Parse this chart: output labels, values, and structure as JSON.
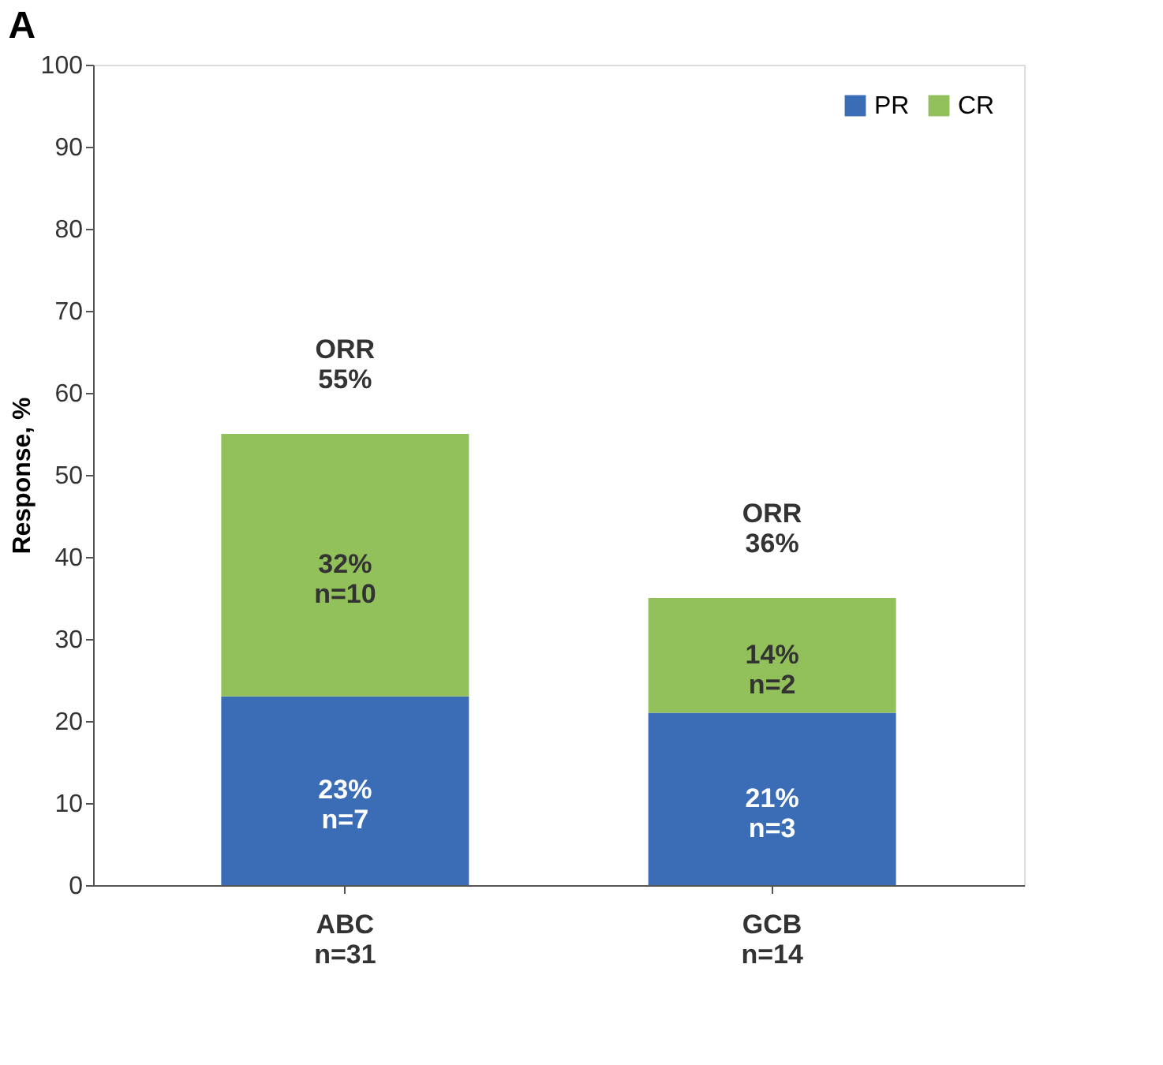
{
  "chart_data": {
    "type": "bar",
    "stacked": true,
    "annotations": [
      "A"
    ],
    "ylabel": "Response, %",
    "categories": [
      "ABC\nn=31",
      "GCB\nn=14"
    ],
    "series": [
      {
        "name": "PR",
        "color": "#3a6db5",
        "values": [
          23,
          21
        ],
        "value_labels": [
          "23%\nn=7",
          "21%\nn=3"
        ]
      },
      {
        "name": "CR",
        "color": "#92c05a",
        "values": [
          32,
          14
        ],
        "value_labels": [
          "32%\nn=10",
          "14%\nn=2"
        ]
      }
    ],
    "totals": [
      "ORR\n55%",
      "ORR\n36%"
    ],
    "ylim": [
      0,
      100
    ],
    "yticks": [
      0,
      10,
      20,
      30,
      40,
      50,
      60,
      70,
      80,
      90,
      100
    ],
    "grid": false,
    "legend": "top right"
  }
}
